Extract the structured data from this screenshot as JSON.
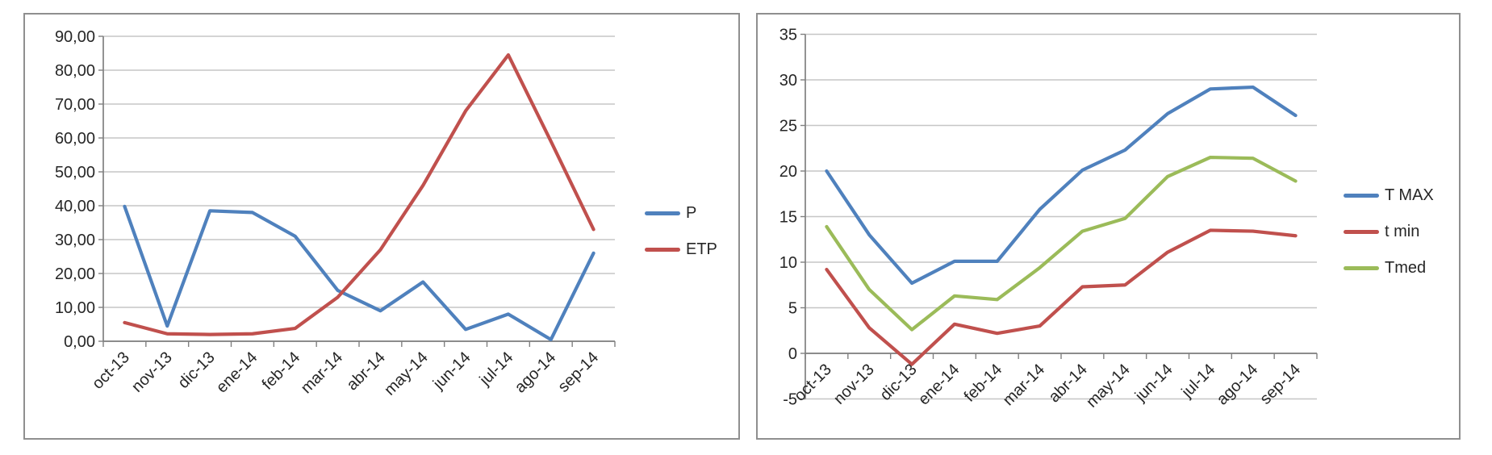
{
  "colors": {
    "gridline": "#c6c6c6",
    "axis": "#808080",
    "box_border": "#8f8f8f",
    "text": "#262626",
    "series_blue": "#4F81BD",
    "series_red": "#C0504D",
    "series_green": "#9BBB59"
  },
  "chart_data": [
    {
      "id": "precipitation-etp",
      "type": "line",
      "title": "",
      "xlabel": "",
      "ylabel": "",
      "grid": true,
      "legend_position": "right",
      "ylim": [
        0,
        90
      ],
      "ytick_step": 10,
      "ytick_labels": [
        "90,00",
        "80,00",
        "70,00",
        "60,00",
        "50,00",
        "40,00",
        "30,00",
        "20,00",
        "10,00",
        "0,00"
      ],
      "categories": [
        "oct-13",
        "nov-13",
        "dic-13",
        "ene-14",
        "feb-14",
        "mar-14",
        "abr-14",
        "may-14",
        "jun-14",
        "jul-14",
        "ago-14",
        "sep-14"
      ],
      "series": [
        {
          "name": "P",
          "color": "#4F81BD",
          "values": [
            39.8,
            4.5,
            38.5,
            38.0,
            31.0,
            15.0,
            9.0,
            17.5,
            3.5,
            8.0,
            0.5,
            26.0
          ]
        },
        {
          "name": "ETP",
          "color": "#C0504D",
          "values": [
            5.5,
            2.2,
            2.0,
            2.2,
            3.8,
            13.0,
            27.0,
            46.0,
            68.0,
            84.5,
            59.0,
            33.0
          ]
        }
      ]
    },
    {
      "id": "temperatures",
      "type": "line",
      "title": "",
      "xlabel": "",
      "ylabel": "",
      "grid": true,
      "legend_position": "right",
      "ylim": [
        -5,
        35
      ],
      "ytick_step": 5,
      "ytick_labels": [
        "35",
        "30",
        "25",
        "20",
        "15",
        "10",
        "5",
        "0",
        "-5"
      ],
      "categories": [
        "oct-13",
        "nov-13",
        "dic-13",
        "ene-14",
        "feb-14",
        "mar-14",
        "abr-14",
        "may-14",
        "jun-14",
        "jul-14",
        "ago-14",
        "sep-14"
      ],
      "series": [
        {
          "name": "T MAX",
          "color": "#4F81BD",
          "values": [
            20.0,
            13.0,
            7.7,
            10.1,
            10.1,
            15.8,
            20.1,
            22.3,
            26.3,
            29.0,
            29.2,
            26.1
          ]
        },
        {
          "name": "t min",
          "color": "#C0504D",
          "values": [
            9.2,
            2.8,
            -1.2,
            3.2,
            2.2,
            3.0,
            7.3,
            7.5,
            11.1,
            13.5,
            13.4,
            12.9
          ]
        },
        {
          "name": "Tmed",
          "color": "#9BBB59",
          "values": [
            13.9,
            7.0,
            2.6,
            6.3,
            5.9,
            9.4,
            13.4,
            14.8,
            19.4,
            21.5,
            21.4,
            18.9
          ]
        }
      ]
    }
  ]
}
